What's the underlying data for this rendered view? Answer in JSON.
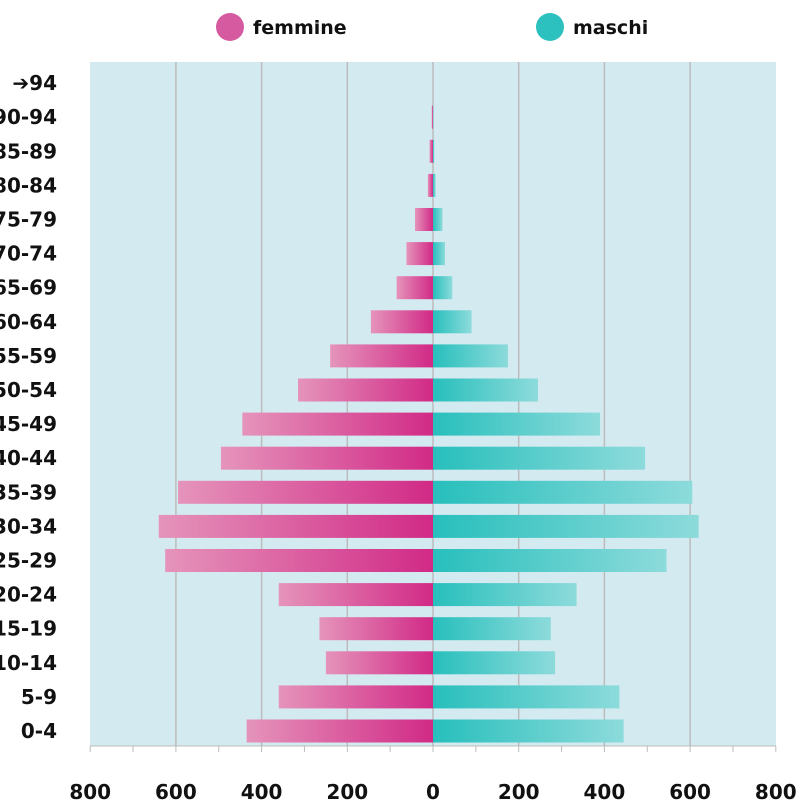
{
  "chart_data": {
    "type": "bar",
    "orientation": "horizontal",
    "subtype": "population-pyramid",
    "categories": [
      "0-4",
      "5-9",
      "10-14",
      "15-19",
      "20-24",
      "25-29",
      "30-34",
      "35-39",
      "40-44",
      "45-49",
      "50-54",
      "55-59",
      "60-64",
      "65-69",
      "70-74",
      "75-79",
      "80-84",
      "85-89",
      "90-94",
      "➔94"
    ],
    "series": [
      {
        "name": "femmine",
        "side": "left",
        "color": "#d12a86",
        "values": [
          435,
          360,
          250,
          265,
          360,
          625,
          640,
          595,
          495,
          445,
          315,
          240,
          145,
          85,
          62,
          42,
          12,
          8,
          3,
          0
        ]
      },
      {
        "name": "maschi",
        "side": "right",
        "color": "#27bfbc",
        "values": [
          445,
          435,
          285,
          275,
          335,
          545,
          620,
          605,
          495,
          390,
          245,
          175,
          90,
          45,
          28,
          22,
          6,
          3,
          1,
          0
        ]
      }
    ],
    "x_ticks": [
      "800",
      "600",
      "400",
      "200",
      "0",
      "200",
      "400",
      "600",
      "800"
    ],
    "xlim": [
      -800,
      800
    ],
    "xlabel": "",
    "ylabel": "",
    "title": "",
    "grid": true,
    "legend": "top"
  },
  "colors": {
    "plot_bg": "#d4eaf1",
    "grid": "#bcbcbc",
    "femmine_dark": "#d12a86",
    "femmine_light": "#e594bb",
    "maschi_dark": "#27bfbc",
    "maschi_light": "#8ddbdb"
  }
}
